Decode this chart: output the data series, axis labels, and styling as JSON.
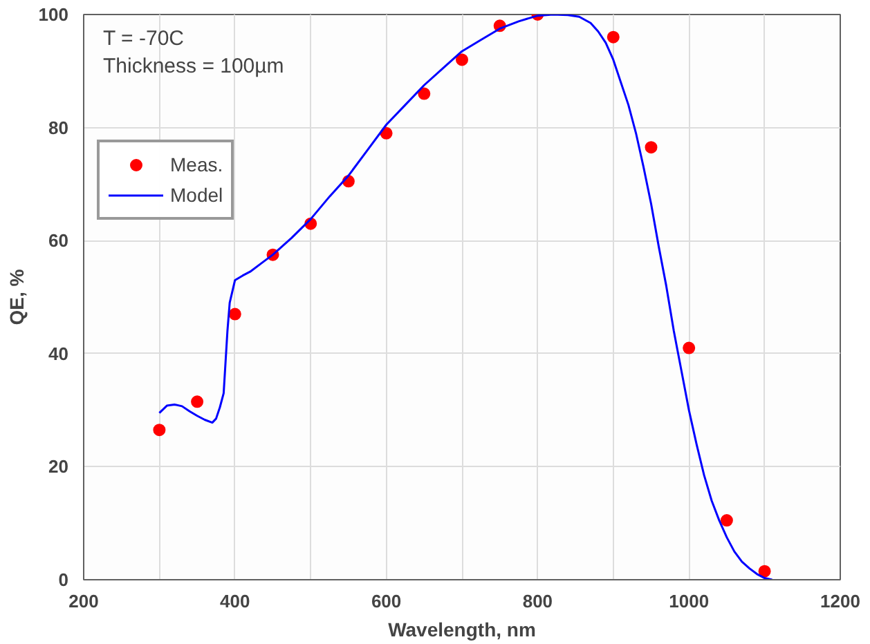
{
  "chart_data": {
    "type": "scatter",
    "xlabel": "Wavelength, nm",
    "ylabel": "QE, %",
    "annotations": [
      "T = -70C",
      "Thickness = 100µm"
    ],
    "xlim": [
      200,
      1200
    ],
    "ylim": [
      0,
      100
    ],
    "xticks": [
      200,
      {
        "value": 300,
        "label": null
      },
      400,
      {
        "value": 500,
        "label": null
      },
      600,
      {
        "value": 700,
        "label": null
      },
      800,
      {
        "value": 900,
        "label": null
      },
      1000,
      {
        "value": 1100,
        "label": null
      },
      1200
    ],
    "yticks": [
      0,
      20,
      40,
      60,
      80,
      100
    ],
    "grid": true,
    "legend": "top left",
    "series": [
      {
        "name": "Meas.",
        "marker": "circle",
        "color": "#ff0000",
        "x": [
          300,
          350,
          400,
          450,
          500,
          550,
          600,
          650,
          700,
          750,
          800,
          900,
          950,
          1000,
          1050,
          1100
        ],
        "values": [
          26.5,
          31.5,
          47,
          57.5,
          63,
          70.5,
          79,
          86,
          92,
          98,
          100,
          96,
          76.5,
          41,
          10.5,
          1.5
        ]
      },
      {
        "name": "Model",
        "type": "line",
        "line_style": "solid",
        "color": "#0000ff",
        "x": [
          300,
          310,
          320,
          330,
          340,
          350,
          360,
          370,
          375,
          380,
          385,
          390,
          393,
          400,
          410,
          420,
          435,
          450,
          475,
          500,
          525,
          550,
          575,
          600,
          625,
          650,
          675,
          700,
          725,
          750,
          775,
          800,
          820,
          840,
          855,
          870,
          880,
          890,
          900,
          910,
          920,
          930,
          940,
          950,
          960,
          970,
          980,
          990,
          1000,
          1010,
          1020,
          1030,
          1040,
          1050,
          1060,
          1070,
          1080,
          1090,
          1100,
          1110
        ],
        "values": [
          29.5,
          30.8,
          31,
          30.7,
          29.8,
          29,
          28.3,
          27.8,
          28.5,
          30.5,
          33,
          44,
          49,
          53,
          53.8,
          54.5,
          56,
          57.5,
          60.5,
          63.8,
          67.8,
          71.5,
          76,
          80.5,
          84,
          87.5,
          90.5,
          93.5,
          95.5,
          97.5,
          98.8,
          99.8,
          100,
          99.9,
          99.6,
          98.5,
          97,
          95,
          92,
          88,
          84,
          79,
          73,
          66.5,
          59,
          52,
          44,
          37,
          30,
          24,
          18.5,
          14,
          10.5,
          7.5,
          5,
          3.2,
          2,
          1,
          0.3,
          0
        ]
      }
    ]
  }
}
